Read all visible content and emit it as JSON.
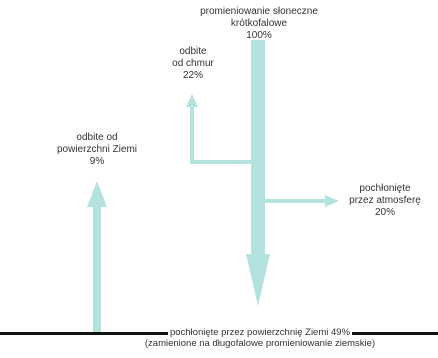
{
  "colors": {
    "arrow": "#b4e3df",
    "ground": "#111111",
    "text": "#333333"
  },
  "labels": {
    "incoming": {
      "line1": "promieniowanie słoneczne",
      "line2": "krótkofalowe",
      "value": "100%"
    },
    "clouds": {
      "line1": "odbite",
      "line2": "od chmur",
      "value": "22%"
    },
    "surface_reflected": {
      "line1": "odbite od",
      "line2": "powierzchni Ziemi",
      "value": "9%"
    },
    "atmosphere": {
      "line1": "pochłonięte",
      "line2": "przez atmosferę",
      "value": "20%"
    },
    "ground": {
      "line1": "pochłonięte przez powierzchnię Ziemi 49%",
      "line2": "(zamienione na długofalowe promieniowanie ziemskie)"
    }
  }
}
